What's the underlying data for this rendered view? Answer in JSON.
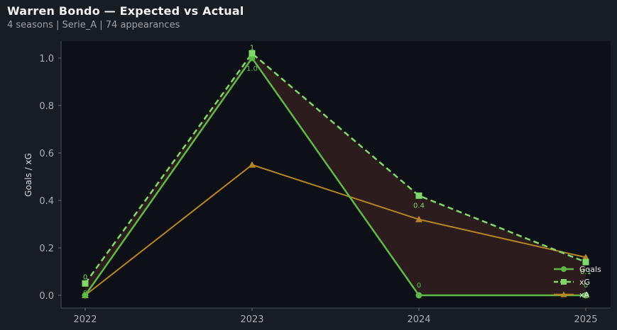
{
  "header": {
    "title": "Warren Bondo — Expected vs Actual",
    "subtitle": "4 seasons | Serie_A | 74 appearances"
  },
  "colors": {
    "goals": "#5fb947",
    "xg": "#7fd86a",
    "xa": "#b88524",
    "fill": "#2e1d1e",
    "plot_bg": "#0d1016",
    "page_bg": "#181c23"
  },
  "chart_data": {
    "type": "line",
    "x": [
      "2022",
      "2023",
      "2024",
      "2025"
    ],
    "ylabel": "Goals / xG",
    "ylim": [
      -0.05,
      1.06
    ],
    "yticks": [
      "0.0",
      "0.2",
      "0.4",
      "0.6",
      "0.8",
      "1.0"
    ],
    "grid": false,
    "legend_position": "bottom-right",
    "series": [
      {
        "name": "Goals",
        "values": [
          0,
          1,
          0,
          0
        ],
        "style": "solid",
        "marker": "circle",
        "labels": [
          "0",
          "1.0",
          "0",
          "0"
        ]
      },
      {
        "name": "xG",
        "values": [
          0.05,
          1.02,
          0.42,
          0.14
        ],
        "style": "dashed",
        "marker": "square",
        "labels": [
          "0",
          "1",
          "0.4",
          "0.1"
        ]
      },
      {
        "name": "xA",
        "values": [
          0,
          0.55,
          0.32,
          0.16
        ],
        "style": "solid",
        "marker": "triangle"
      }
    ]
  }
}
